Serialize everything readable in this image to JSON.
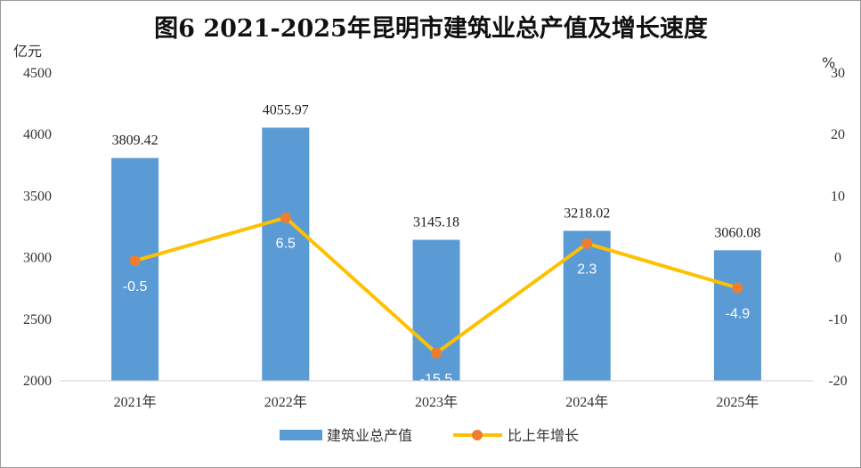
{
  "chart_data": {
    "type": "bar+line",
    "title": "图6  2021-2025年昆明市建筑业总产值及增长速度",
    "left_unit": "亿元",
    "right_unit": "%",
    "categories": [
      "2021年",
      "2022年",
      "2023年",
      "2024年",
      "2025年"
    ],
    "series": [
      {
        "name": "建筑业总产值",
        "type": "bar",
        "axis": "left",
        "color": "#5b9bd5",
        "values": [
          3809.42,
          4055.97,
          3145.18,
          3218.02,
          3060.08
        ]
      },
      {
        "name": "比上年增长",
        "type": "line",
        "axis": "right",
        "color": "#ffc000",
        "marker_color": "#ed7d31",
        "values": [
          -0.5,
          6.5,
          -15.5,
          2.3,
          -4.9
        ]
      }
    ],
    "left_axis": {
      "min": 2000,
      "max": 4500,
      "ticks": [
        "2000",
        "2500",
        "3000",
        "3500",
        "4000",
        "4500"
      ]
    },
    "right_axis": {
      "min": -20,
      "max": 30,
      "ticks": [
        "-20",
        "-10",
        "0",
        "10",
        "20",
        "30"
      ]
    },
    "bar_labels": [
      "3809.42",
      "4055.97",
      "3145.18",
      "3218.02",
      "3060.08"
    ],
    "line_labels": [
      "-0.5",
      "6.5",
      "-15.5",
      "2.3",
      "-4.9"
    ],
    "legend_position": "bottom",
    "grid": false
  }
}
